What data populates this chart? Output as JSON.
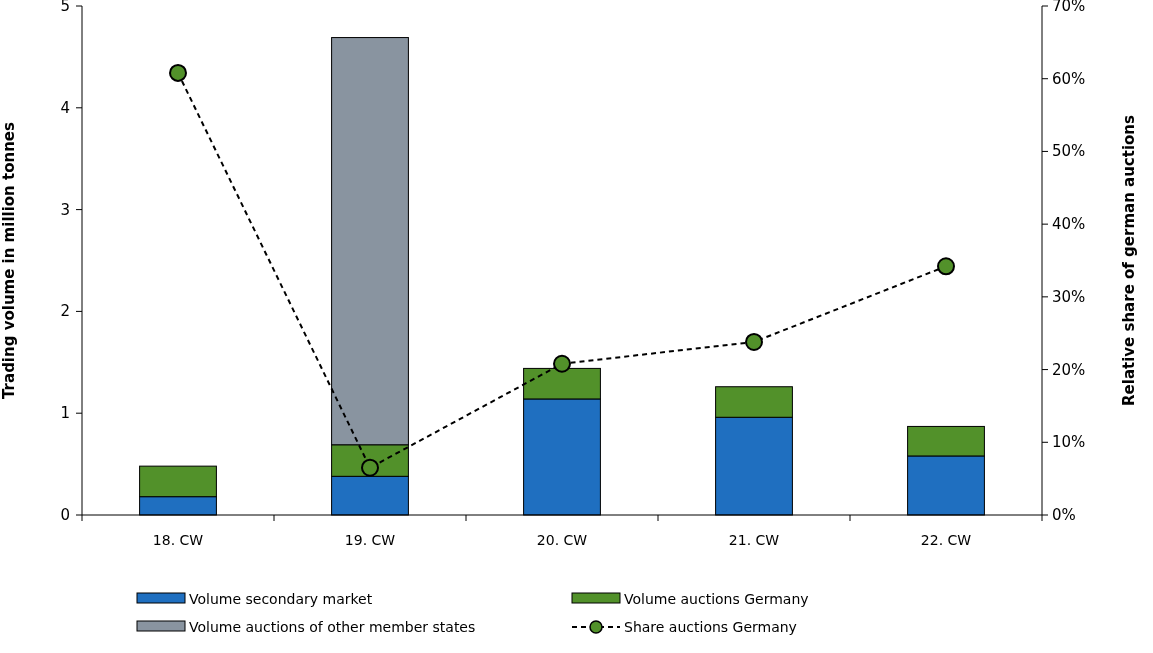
{
  "chart_data": {
    "type": "bar",
    "stacked": true,
    "ylabel": "Trading volume in million tonnes",
    "y2label": "Relative share of german auctions",
    "categories": [
      "18. CW",
      "19. CW",
      "20. CW",
      "21. CW",
      "22. CW"
    ],
    "series": [
      {
        "name": "Volume secondary market",
        "color": "#1f6fc0",
        "values": [
          0.18,
          0.38,
          1.14,
          0.96,
          0.58
        ]
      },
      {
        "name": "Volume auctions  Germany",
        "color": "#52912a",
        "values": [
          0.3,
          0.31,
          0.3,
          0.3,
          0.29
        ]
      },
      {
        "name": "Volume auctions  of other member states",
        "color": "#8994a0",
        "values": [
          null,
          4.0,
          null,
          null,
          null
        ]
      },
      {
        "name": "Share auctions  Germany",
        "type": "line",
        "axis": "y2",
        "color": "#52912a",
        "marker": "circle",
        "line_style": "dashed",
        "values": [
          60.8,
          6.5,
          20.8,
          23.8,
          34.2
        ]
      }
    ],
    "ylim": [
      0,
      5
    ],
    "yticks": [
      0,
      1,
      2,
      3,
      4,
      5
    ],
    "y2lim": [
      0,
      70
    ],
    "y2ticks": [
      {
        "value": 0,
        "label": "0%"
      },
      {
        "value": 10,
        "label": "10%"
      },
      {
        "value": 20,
        "label": "20%"
      },
      {
        "value": 30,
        "label": "30%"
      },
      {
        "value": 40,
        "label": "40%"
      },
      {
        "value": 50,
        "label": "50%"
      },
      {
        "value": 60,
        "label": "60%"
      },
      {
        "value": 70,
        "label": "70%"
      }
    ],
    "grid": false,
    "legend": "bottom"
  }
}
